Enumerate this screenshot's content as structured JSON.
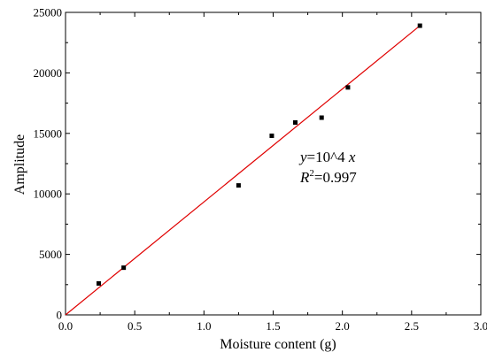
{
  "chart_data": {
    "type": "scatter",
    "title": "",
    "xlabel": "Moisture content (g)",
    "ylabel": "Amplitude",
    "xlim": [
      0,
      3.0
    ],
    "ylim": [
      0,
      25000
    ],
    "x_ticks": [
      "0.0",
      "0.5",
      "1.0",
      "1.5",
      "2.0",
      "2.5",
      "3.0"
    ],
    "y_ticks": [
      "0",
      "5000",
      "10000",
      "15000",
      "20000",
      "25000"
    ],
    "grid": false,
    "legend": "none",
    "series": [
      {
        "x": [
          0.24,
          0.42,
          1.25,
          1.49,
          1.66,
          1.85,
          2.04,
          2.56
        ],
        "y": [
          2600,
          3900,
          10700,
          14800,
          15900,
          16300,
          18800,
          23900
        ],
        "marker": "square",
        "color": "#000000"
      }
    ],
    "fit_line": {
      "x": [
        0,
        2.56
      ],
      "y": [
        0,
        23900
      ],
      "color": "#e00000"
    },
    "annotations": {
      "equation_y": "y",
      "equation_rest": "=10^4 ",
      "equation_x": "x",
      "r_letter": "R",
      "r_sup": "2",
      "r_value": "=0.997"
    }
  }
}
